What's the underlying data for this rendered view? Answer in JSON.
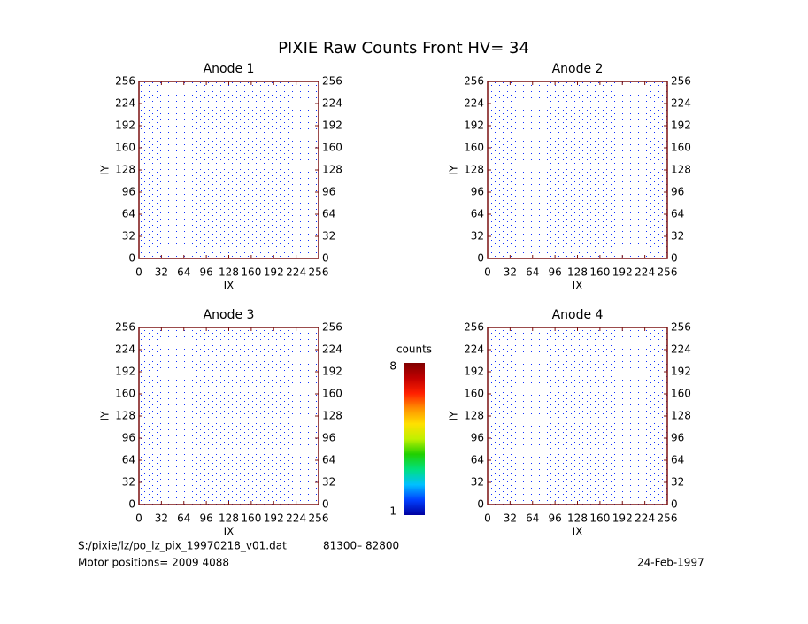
{
  "title": "PIXIE Raw Counts Front HV= 34",
  "chart_data": [
    {
      "type": "heatmap",
      "title": "Anode 1",
      "x_label": "IX",
      "y_label": "IY",
      "xlim": [
        0,
        256
      ],
      "ylim": [
        0,
        256
      ],
      "xticks": [
        0,
        32,
        64,
        96,
        128,
        160,
        192,
        224,
        256
      ],
      "yticks": [
        0,
        32,
        64,
        96,
        128,
        160,
        192,
        224,
        256
      ]
    },
    {
      "type": "heatmap",
      "title": "Anode 2",
      "x_label": "IX",
      "y_label": "IY",
      "xlim": [
        0,
        256
      ],
      "ylim": [
        0,
        256
      ],
      "xticks": [
        0,
        32,
        64,
        96,
        128,
        160,
        192,
        224,
        256
      ],
      "yticks": [
        0,
        32,
        64,
        96,
        128,
        160,
        192,
        224,
        256
      ]
    },
    {
      "type": "heatmap",
      "title": "Anode 3",
      "x_label": "IX",
      "y_label": "IY",
      "xlim": [
        0,
        256
      ],
      "ylim": [
        0,
        256
      ],
      "xticks": [
        0,
        32,
        64,
        96,
        128,
        160,
        192,
        224,
        256
      ],
      "yticks": [
        0,
        32,
        64,
        96,
        128,
        160,
        192,
        224,
        256
      ]
    },
    {
      "type": "heatmap",
      "title": "Anode 4",
      "x_label": "IX",
      "y_label": "IY",
      "xlim": [
        0,
        256
      ],
      "ylim": [
        0,
        256
      ],
      "xticks": [
        0,
        32,
        64,
        96,
        128,
        160,
        192,
        224,
        256
      ],
      "yticks": [
        0,
        32,
        64,
        96,
        128,
        160,
        192,
        224,
        256
      ]
    }
  ],
  "colorbar": {
    "label": "counts",
    "range": [
      1,
      8
    ],
    "ticks": [
      1,
      8
    ],
    "colors": [
      "#0000a0",
      "#0040ff",
      "#00c0ff",
      "#00e080",
      "#20d000",
      "#c0f000",
      "#ffe000",
      "#ff9000",
      "#ff2000",
      "#c00000",
      "#800000"
    ]
  },
  "footer": {
    "file": "S:/pixie/lz/po_lz_pix_19970218_v01.dat",
    "range": "81300– 82800",
    "motor": "Motor positions= 2009 4088",
    "date": "24-Feb-1997"
  }
}
